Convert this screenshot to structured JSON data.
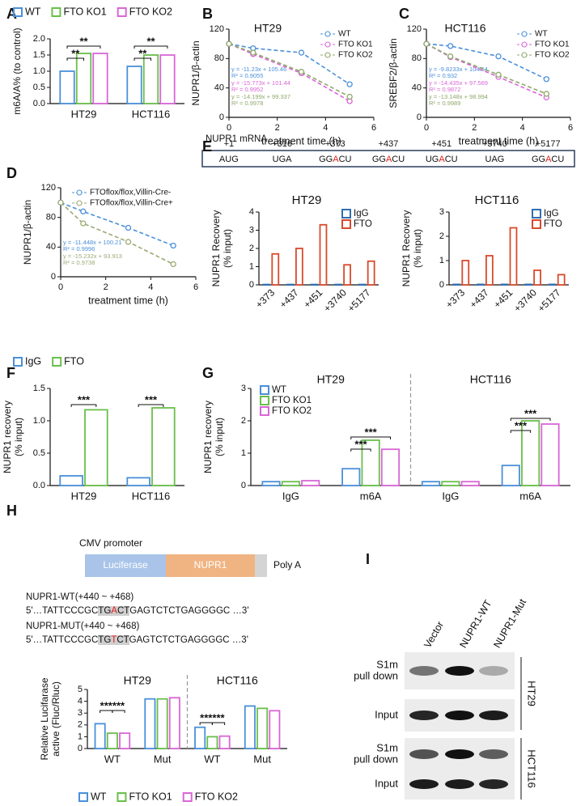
{
  "panels": [
    "A",
    "B",
    "C",
    "D",
    "E",
    "F",
    "G",
    "H",
    "I"
  ],
  "chart_data": [
    {
      "type": "bar",
      "ylabel": [
        "m6A/A% (to control)"
      ],
      "categories": [
        "HT29",
        "HCT116"
      ],
      "series": [
        {
          "name": "WT",
          "color": "#4a90d9",
          "values": [
            1.0,
            1.15
          ]
        },
        {
          "name": "FTO KO1",
          "color": "#6abf4b",
          "values": [
            1.55,
            1.5
          ]
        },
        {
          "name": "FTO KO2",
          "color": "#d966d6",
          "values": [
            1.55,
            1.5
          ]
        }
      ],
      "ylim": [
        0,
        2
      ],
      "yticks": [
        {
          "value": 0,
          "label": "0.0"
        },
        {
          "value": 0.5,
          "label": "0.5"
        },
        {
          "value": 1,
          "label": "1.0"
        },
        {
          "value": 1.5,
          "label": "1.5"
        },
        {
          "value": 2,
          "label": "2.0"
        }
      ],
      "legend": "top",
      "annotations": [
        "**",
        "**",
        "**",
        "**"
      ]
    },
    {
      "type": "line",
      "title": "HT29",
      "ylabel": [
        "NUPR1/β-actin"
      ],
      "xlabel": "treatment time (h)",
      "x": [
        0,
        1,
        3,
        5
      ],
      "series": [
        {
          "name": "WT",
          "color": "#4a90d9",
          "values": [
            100,
            94,
            88,
            45
          ],
          "equation": "y = -11.23x + 105.46",
          "r2": "R² = 0.9055"
        },
        {
          "name": "FTO KO1",
          "color": "#d966d6",
          "values": [
            100,
            86,
            60,
            22
          ],
          "equation": "y = -15.773x + 101.44",
          "r2": "R² = 0.9952"
        },
        {
          "name": "FTO KO2",
          "color": "#8fa86a",
          "values": [
            100,
            88,
            62,
            28
          ],
          "equation": "y = -14.199x + 99.337",
          "r2": "R² = 0.9978"
        }
      ],
      "xlim": [
        0,
        6
      ],
      "xticks": [
        0,
        2,
        4,
        6
      ],
      "ylim": [
        0,
        120
      ],
      "yticks": [
        0,
        40,
        80,
        120
      ],
      "legend": "upper right"
    },
    {
      "type": "line",
      "title": "HCT116",
      "ylabel": [
        "SREBF2/β-actin"
      ],
      "xlabel": "treatment time (h)",
      "x": [
        0,
        1,
        3,
        5
      ],
      "series": [
        {
          "name": "WT",
          "color": "#4a90d9",
          "values": [
            100,
            97,
            83,
            52
          ],
          "equation": "y = -9.8233x + 104.54",
          "r2": "R² = 0.932"
        },
        {
          "name": "FTO KO1",
          "color": "#d966d6",
          "values": [
            100,
            82,
            55,
            27
          ],
          "equation": "y = -14.435x + 97.569",
          "r2": "R² = 0.9872"
        },
        {
          "name": "FTO KO2",
          "color": "#8fa86a",
          "values": [
            100,
            83,
            58,
            32
          ],
          "equation": "y = -13.148x + 98.994",
          "r2": "R² = 0.9989"
        }
      ],
      "xlim": [
        0,
        6
      ],
      "xticks": [
        0,
        2,
        4,
        6
      ],
      "ylim": [
        0,
        120
      ],
      "yticks": [
        0,
        40,
        80,
        120
      ],
      "legend": "upper right"
    },
    {
      "type": "line",
      "ylabel": [
        "NUPR1/β-actin"
      ],
      "xlabel": "treatment time (h)",
      "x": [
        0,
        1,
        3,
        5
      ],
      "series": [
        {
          "name": "FTOflox/flox,Villin-Cre-",
          "color": "#4a90d9",
          "values": [
            100,
            88,
            66,
            42
          ],
          "equation": "y = -11.448x + 100.21",
          "r2": "R² = 0.9996"
        },
        {
          "name": "FTOflox/flox,Villin-Cre+",
          "color": "#9aaa74",
          "values": [
            100,
            72,
            47,
            17
          ],
          "equation": "y = -15.232x + 93.913",
          "r2": "R² = 0.9738"
        }
      ],
      "xlim": [
        0,
        6
      ],
      "xticks": [
        0,
        2,
        4,
        6
      ],
      "ylim": [
        0,
        120
      ],
      "yticks": [
        0,
        40,
        80,
        120
      ],
      "legend": "upper right"
    },
    {
      "type": "bar",
      "title": "HT29",
      "ylabel": [
        "NUPR1 Recovery",
        "(% input)"
      ],
      "categories": [
        "+373",
        "+437",
        "+451",
        "+3740",
        "+5177"
      ],
      "series": [
        {
          "name": "IgG",
          "color": "#2f6fb0",
          "values": [
            0.02,
            0.02,
            0.02,
            0.02,
            0.02
          ]
        },
        {
          "name": "FTO",
          "color": "#d94a2b",
          "values": [
            1.7,
            2.0,
            3.3,
            1.1,
            1.3
          ]
        }
      ],
      "ylim": [
        0,
        4
      ],
      "yticks": [
        0,
        1,
        2,
        3,
        4
      ],
      "legend": "upper right",
      "xtick_rotation": -45
    },
    {
      "type": "bar",
      "title": "HCT116",
      "ylabel": [
        "NUPR1 Recovery",
        "(% input)"
      ],
      "categories": [
        "+373",
        "+437",
        "+451",
        "+3740",
        "+5177"
      ],
      "series": [
        {
          "name": "IgG",
          "color": "#2f6fb0",
          "values": [
            0.02,
            0.02,
            0.02,
            0.02,
            0.02
          ]
        },
        {
          "name": "FTO",
          "color": "#d94a2b",
          "values": [
            1.0,
            1.2,
            2.35,
            0.6,
            0.42
          ]
        }
      ],
      "ylim": [
        0,
        3
      ],
      "yticks": [
        0,
        1,
        2,
        3
      ],
      "legend": "upper right",
      "xtick_rotation": -45
    },
    {
      "type": "bar",
      "ylabel": [
        "NUPR1 recovery",
        "(% input)"
      ],
      "categories": [
        "HT29",
        "HCT116"
      ],
      "series": [
        {
          "name": "IgG",
          "color": "#4a90d9",
          "values": [
            0.15,
            0.12
          ]
        },
        {
          "name": "FTO",
          "color": "#6abf4b",
          "values": [
            1.17,
            1.2
          ]
        }
      ],
      "ylim": [
        0,
        1.5
      ],
      "yticks": [
        {
          "value": 0,
          "label": "0.0"
        },
        {
          "value": 0.5,
          "label": "0.5"
        },
        {
          "value": 1,
          "label": "1.0"
        },
        {
          "value": 1.5,
          "label": "1.5"
        }
      ],
      "legend": "top",
      "annotations": [
        "***",
        "***"
      ]
    },
    {
      "type": "bar",
      "ylabel": [
        "NUPR1 recovery",
        "(% input)"
      ],
      "categories": [
        "IgG",
        "m6A",
        "IgG",
        "m6A"
      ],
      "groups": [
        "HT29",
        "HCT116"
      ],
      "series": [
        {
          "name": "WT",
          "color": "#4a90d9",
          "values": [
            0.12,
            0.52,
            0.12,
            0.62
          ]
        },
        {
          "name": "FTO KO1",
          "color": "#6abf4b",
          "values": [
            0.12,
            1.4,
            0.12,
            2.0
          ]
        },
        {
          "name": "FTO KO2",
          "color": "#d966d6",
          "values": [
            0.15,
            1.12,
            0.12,
            1.9
          ]
        }
      ],
      "ylim": [
        0,
        3
      ],
      "yticks": [
        0,
        1,
        2,
        3
      ],
      "legend": "upper left",
      "annotations": [
        "***",
        "***",
        "***",
        "***"
      ]
    },
    {
      "type": "bar",
      "ylabel": [
        "Relative Lucifarase",
        "active (Fluc/Rluc)"
      ],
      "categories": [
        "WT",
        "Mut",
        "WT",
        "Mut"
      ],
      "groups": [
        "HT29",
        "HCT116"
      ],
      "series": [
        {
          "name": "WT",
          "color": "#4a90d9",
          "values": [
            2.1,
            4.2,
            1.8,
            3.6
          ]
        },
        {
          "name": "FTO KO1",
          "color": "#6abf4b",
          "values": [
            1.3,
            4.2,
            1.0,
            3.4
          ]
        },
        {
          "name": "FTO KO2",
          "color": "#d966d6",
          "values": [
            1.3,
            4.3,
            1.05,
            3.2
          ]
        }
      ],
      "ylim": [
        0,
        5
      ],
      "yticks": [
        0,
        1,
        2,
        3,
        4,
        5
      ],
      "legend": "bottom",
      "annotations": [
        "***",
        "***",
        "***",
        "***"
      ]
    }
  ],
  "mrna": {
    "label": "NUPR1 mRNA",
    "positions": [
      "+1",
      "+316",
      "+373",
      "+437",
      "+451",
      "+3740",
      "+5177"
    ],
    "motifs": [
      [
        "AUG"
      ],
      [
        "UGA"
      ],
      [
        "GG",
        "A",
        "CU"
      ],
      [
        "GG",
        "A",
        "CU"
      ],
      [
        "UG",
        "A",
        "CU"
      ],
      [
        "UAG"
      ],
      [
        "GG",
        "A",
        "CU"
      ]
    ]
  },
  "construct": {
    "promoter": "CMV promoter",
    "segments": [
      "Luciferase",
      "NUPR1"
    ],
    "tail": "Poly A",
    "sequences": [
      {
        "name": "NUPR1-WT(+440 ~ +468)",
        "parts": [
          "5'…TATTCCCGC",
          "TG",
          "A",
          "CT",
          "GAGTCTCTGAGGGGC …3'"
        ]
      },
      {
        "name": "NUPR1-MUT(+440 ~ +468)",
        "parts": [
          "5'…TATTCCCGC",
          "TG",
          "T",
          "CT",
          "GAGTCTCTGAGGGGC …3'"
        ]
      }
    ]
  },
  "blot": {
    "lanes": [
      "Vector",
      "NUPR1-WT",
      "NUPR1-Mut"
    ],
    "rows": [
      [
        "S1m",
        "pull down"
      ],
      [
        "Input"
      ],
      [
        "S1m",
        "pull down"
      ],
      [
        "Input"
      ]
    ],
    "cells": [
      "HT29",
      "HCT116"
    ]
  }
}
